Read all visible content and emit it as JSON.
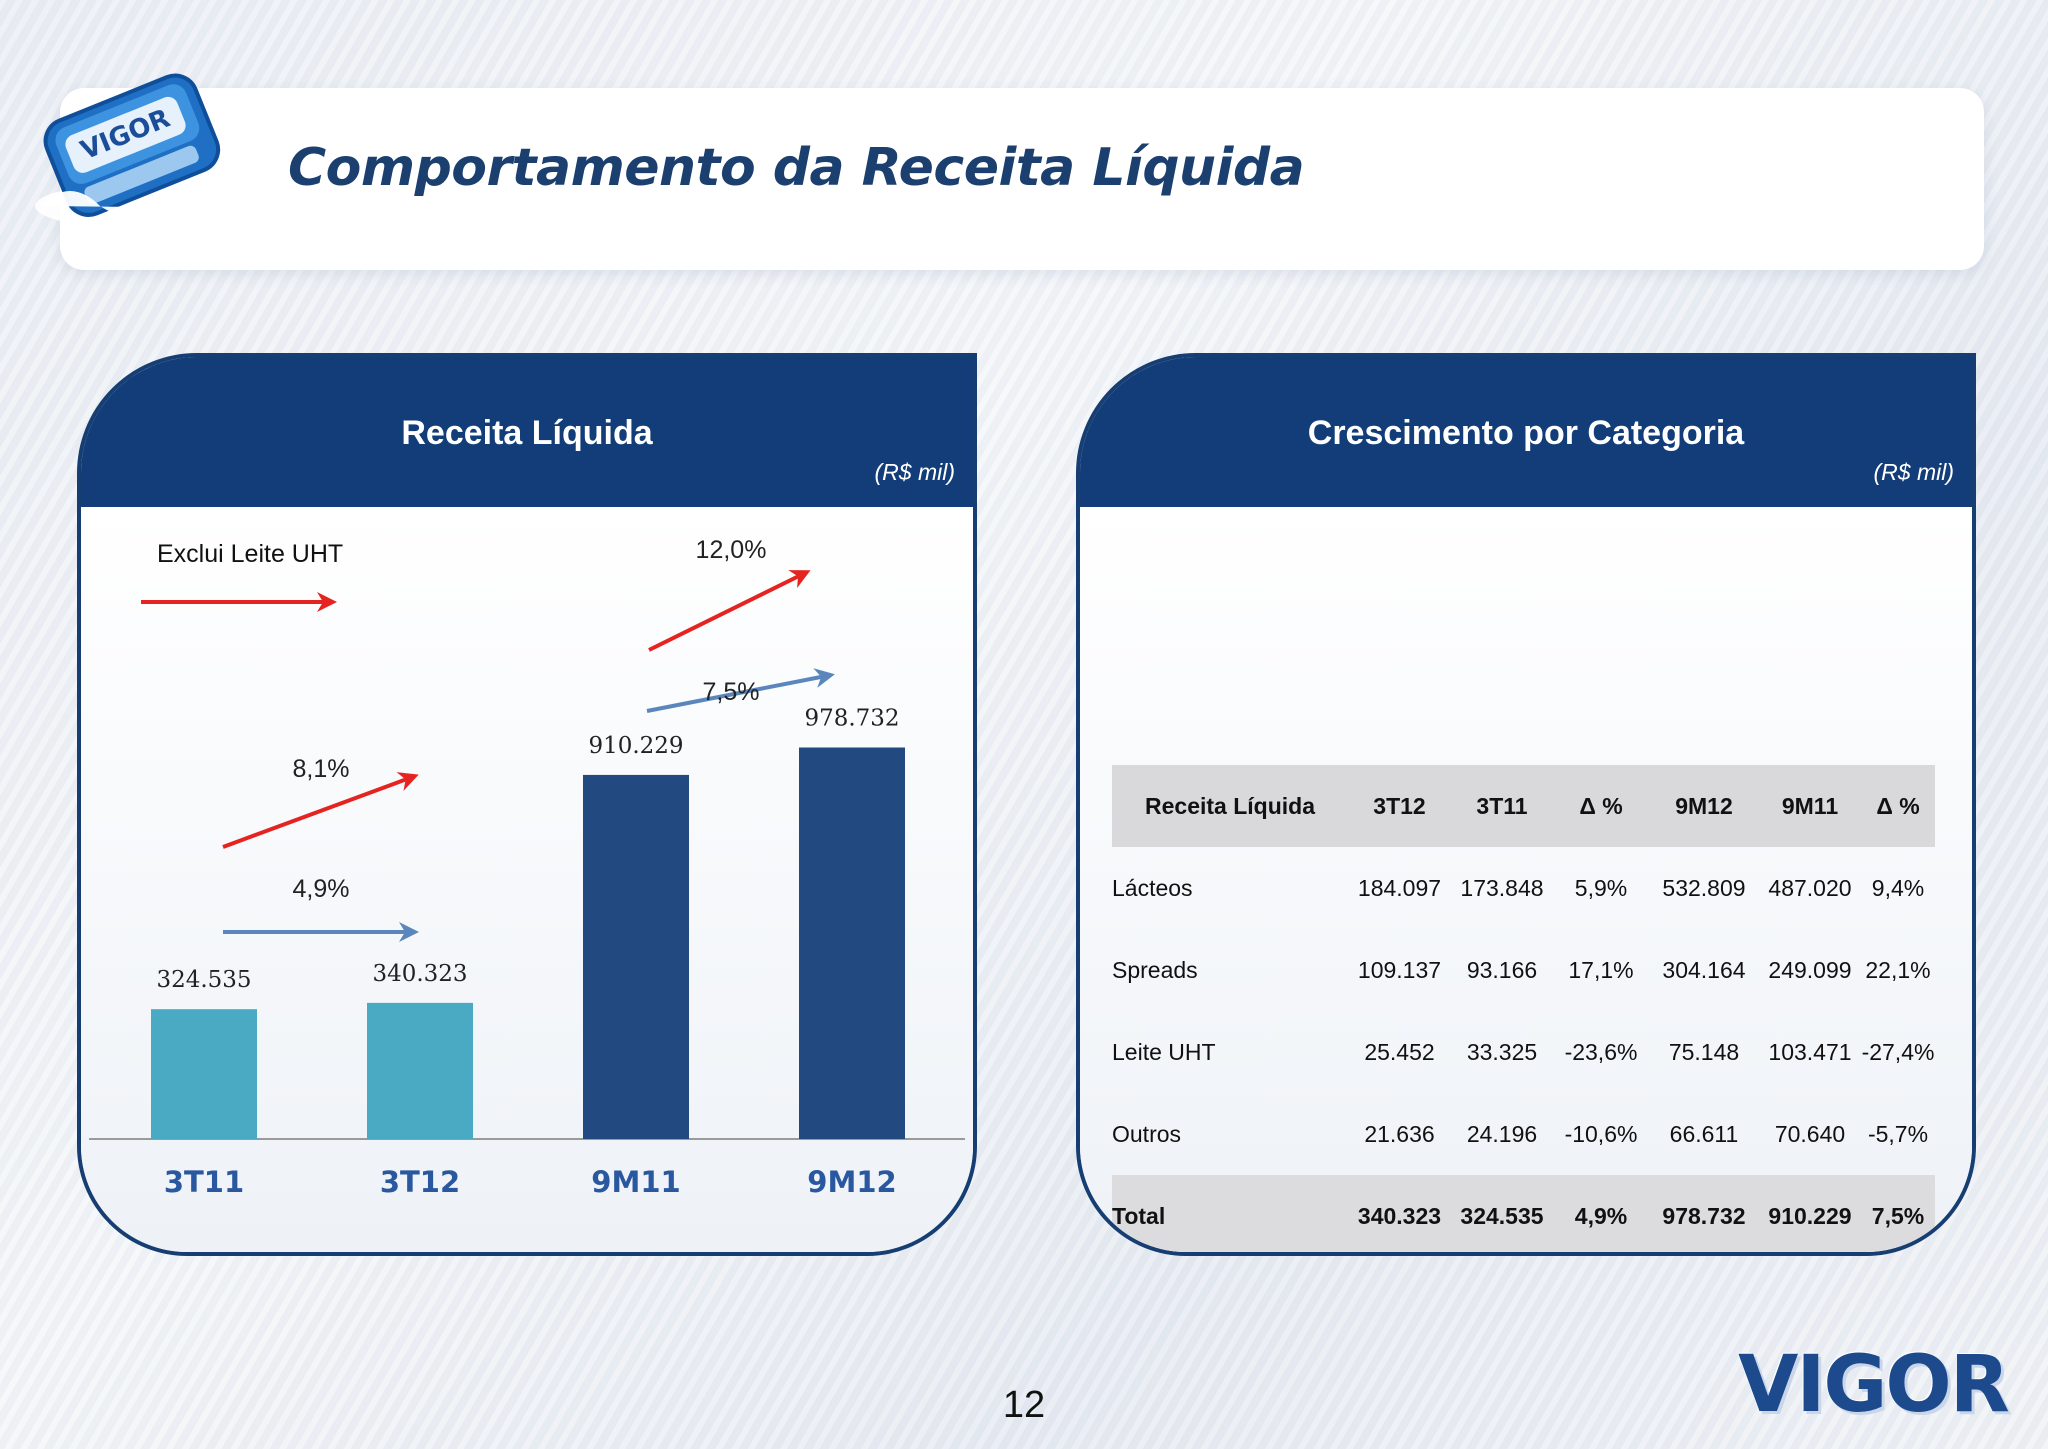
{
  "page": {
    "title": "Comportamento da Receita Líquida",
    "page_number": "12",
    "logo_text": "VIGOR",
    "colors": {
      "dark_blue": "#123d78",
      "light_bar": "#4aaac4",
      "dark_bar": "#224a80",
      "red_arrow": "#e52421",
      "blue_arrow": "#5b86bd"
    }
  },
  "left_panel": {
    "title": "Receita Líquida",
    "unit": "(R$ mil)",
    "legend_note": "Exclui Leite UHT"
  },
  "chart_data": {
    "type": "bar",
    "title": "Receita Líquida",
    "unit": "(R$ mil)",
    "categories": [
      "3T11",
      "3T12",
      "9M11",
      "9M12"
    ],
    "values": [
      324535,
      340323,
      910229,
      978732
    ],
    "value_labels": [
      "324.535",
      "340.323",
      "910.229",
      "978.732"
    ],
    "bar_colors": [
      "#4aaac4",
      "#4aaac4",
      "#224a80",
      "#224a80"
    ],
    "ylim": [
      0,
      1200000
    ],
    "grid": false,
    "annotations": [
      {
        "text": "8,1%",
        "from": "3T11",
        "to": "3T12",
        "color": "#e52421",
        "series": "Exclui Leite UHT"
      },
      {
        "text": "4,9%",
        "from": "3T11",
        "to": "3T12",
        "color": "#5b86bd"
      },
      {
        "text": "12,0%",
        "from": "9M11",
        "to": "9M12",
        "color": "#e52421",
        "series": "Exclui Leite UHT"
      },
      {
        "text": "7,5%",
        "from": "9M11",
        "to": "9M12",
        "color": "#5b86bd"
      }
    ]
  },
  "right_panel": {
    "title": "Crescimento por Categoria",
    "unit": "(R$ mil)",
    "table": {
      "headers": [
        "Receita Líquida",
        "3T12",
        "3T11",
        "Δ %",
        "9M12",
        "9M11",
        "Δ %"
      ],
      "rows": [
        [
          "Lácteos",
          "184.097",
          "173.848",
          "5,9%",
          "532.809",
          "487.020",
          "9,4%"
        ],
        [
          "Spreads",
          "109.137",
          "93.166",
          "17,1%",
          "304.164",
          "249.099",
          "22,1%"
        ],
        [
          "Leite UHT",
          "25.452",
          "33.325",
          "-23,6%",
          "75.148",
          "103.471",
          "-27,4%"
        ],
        [
          "Outros",
          "21.636",
          "24.196",
          "-10,6%",
          "66.611",
          "70.640",
          "-5,7%"
        ]
      ],
      "total": [
        "Total",
        "340.323",
        "324.535",
        "4,9%",
        "978.732",
        "910.229",
        "7,5%"
      ]
    }
  }
}
